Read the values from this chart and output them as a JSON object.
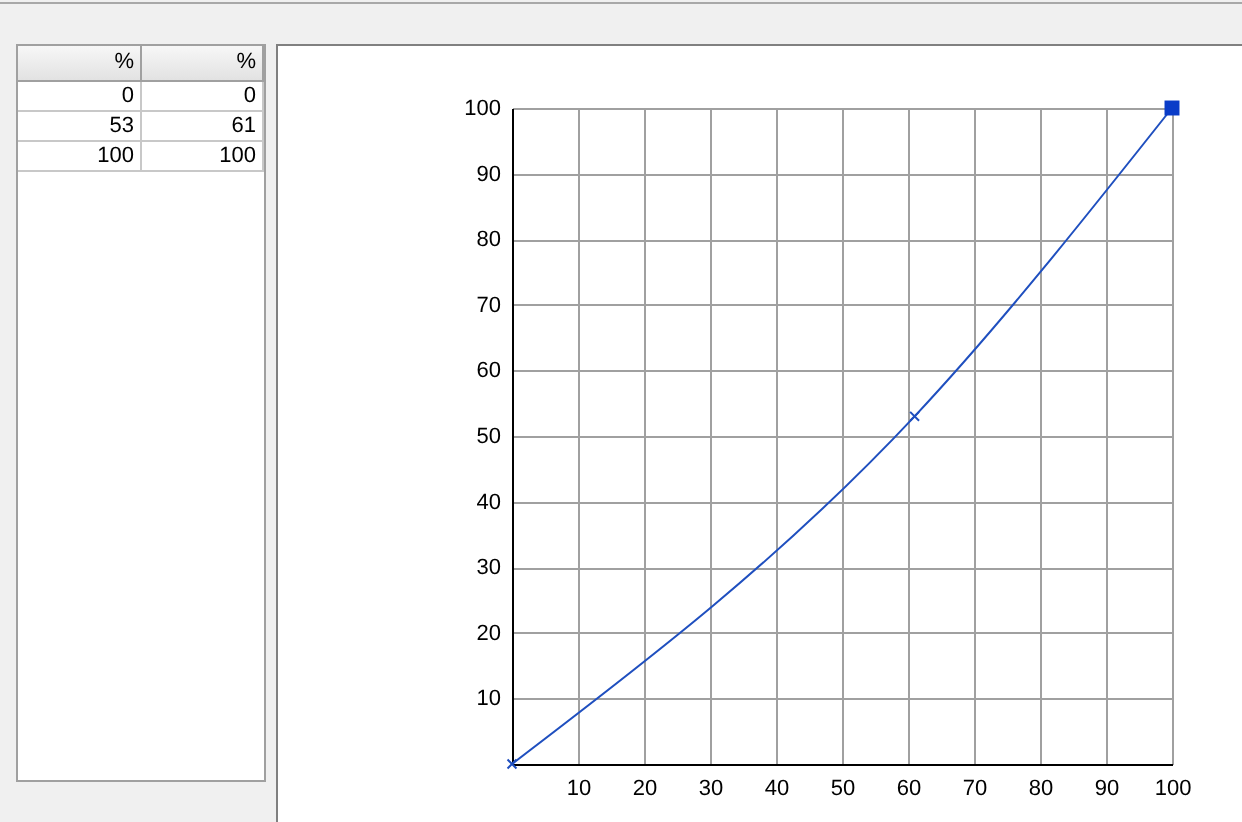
{
  "chart_data": [
    {
      "type": "other",
      "annotations": [
        "%",
        "%",
        "0",
        "0",
        "53",
        "61",
        "100",
        "100"
      ]
    },
    {
      "type": "line",
      "xlim": [
        0,
        100
      ],
      "ylim": [
        0,
        100
      ],
      "xticks": [
        10,
        20,
        30,
        40,
        50,
        60,
        70,
        80,
        90,
        100
      ],
      "yticks": [
        10,
        20,
        30,
        40,
        50,
        60,
        70,
        80,
        90,
        100
      ],
      "grid": true,
      "line_style": "solid",
      "series": [
        {
          "color": "#1f4fbf",
          "x": [
            0,
            61,
            100
          ],
          "values": [
            0,
            53,
            100
          ],
          "marker": "cross"
        },
        {
          "type": "scatter",
          "color": "#0a3cc8",
          "x": [
            100
          ],
          "values": [
            100
          ],
          "marker": "square"
        }
      ]
    }
  ]
}
